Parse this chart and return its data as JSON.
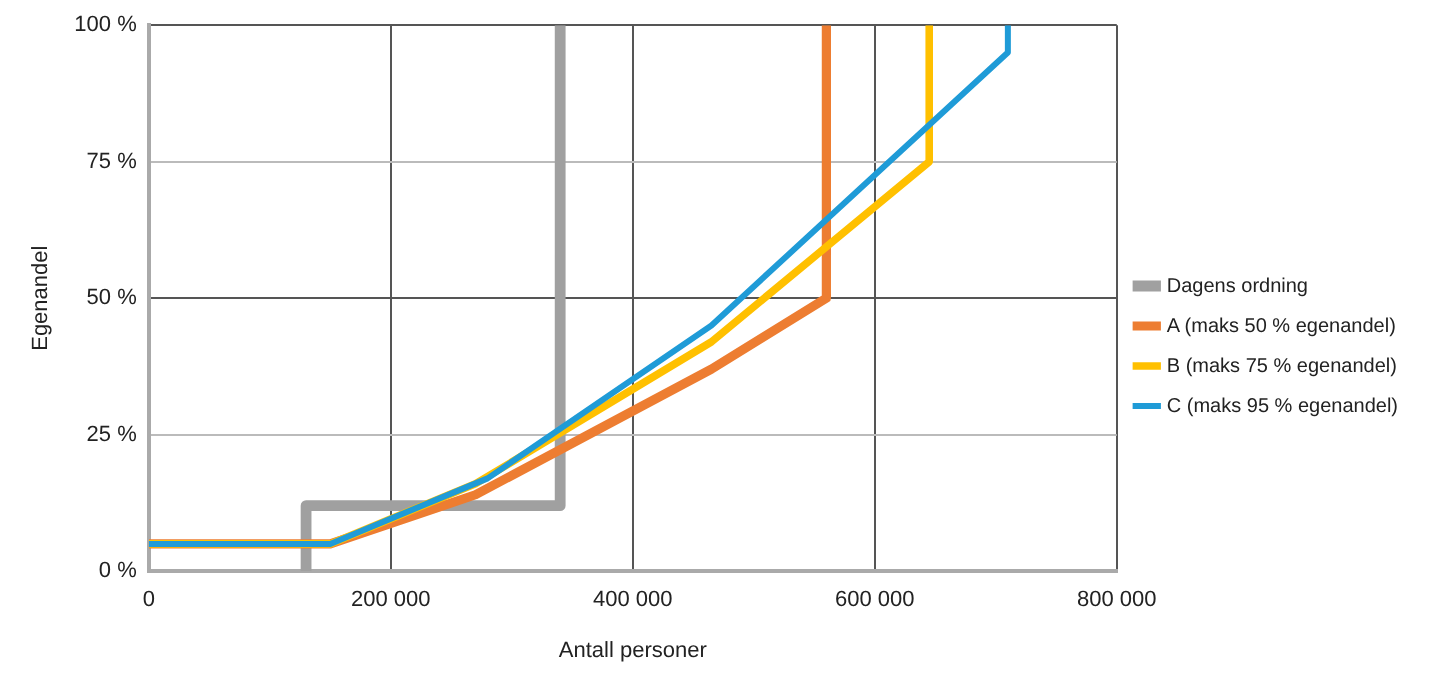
{
  "chart_data": {
    "type": "line",
    "xlabel": "Antall personer",
    "ylabel": "Egenandel",
    "xlim": [
      0,
      800000
    ],
    "xticks": [
      0,
      {
        "value": 200000,
        "label": "200 000"
      },
      {
        "value": 400000,
        "label": "400 000"
      },
      {
        "value": 600000,
        "label": "600 000"
      },
      {
        "value": 800000,
        "label": "800 000"
      }
    ],
    "ylim": [
      0,
      100
    ],
    "yticks": [
      {
        "value": 0,
        "label": "0 %"
      },
      {
        "value": 25,
        "label": "25 %"
      },
      {
        "value": 50,
        "label": "50 %"
      },
      {
        "value": 75,
        "label": "75 %"
      },
      {
        "value": 100,
        "label": "100 %"
      }
    ],
    "grid": true,
    "legend": "right",
    "marker": "none",
    "line_style": "solid",
    "series": [
      {
        "name": "Dagens ordning",
        "color": "#a0a0a0",
        "x": [
          130000,
          130000,
          340000,
          340000
        ],
        "values": [
          0,
          12,
          12,
          100
        ]
      },
      {
        "name": "A (maks 50 % egenandel)",
        "color": "#ed7d31",
        "x": [
          0,
          150000,
          270000,
          465000,
          560000,
          560000
        ],
        "values": [
          5,
          5,
          14,
          37,
          50,
          100
        ]
      },
      {
        "name": "B (maks 75 % egenandel)",
        "color": "#ffc000",
        "x": [
          0,
          150000,
          270000,
          465000,
          645000,
          645000
        ],
        "values": [
          5,
          5,
          16,
          42,
          75,
          100
        ]
      },
      {
        "name": "C (maks 95 % egenandel)",
        "color": "#1f9bd7",
        "x": [
          0,
          150000,
          280000,
          465000,
          710000,
          710000
        ],
        "values": [
          5,
          5,
          17,
          45,
          95,
          100
        ]
      }
    ]
  }
}
